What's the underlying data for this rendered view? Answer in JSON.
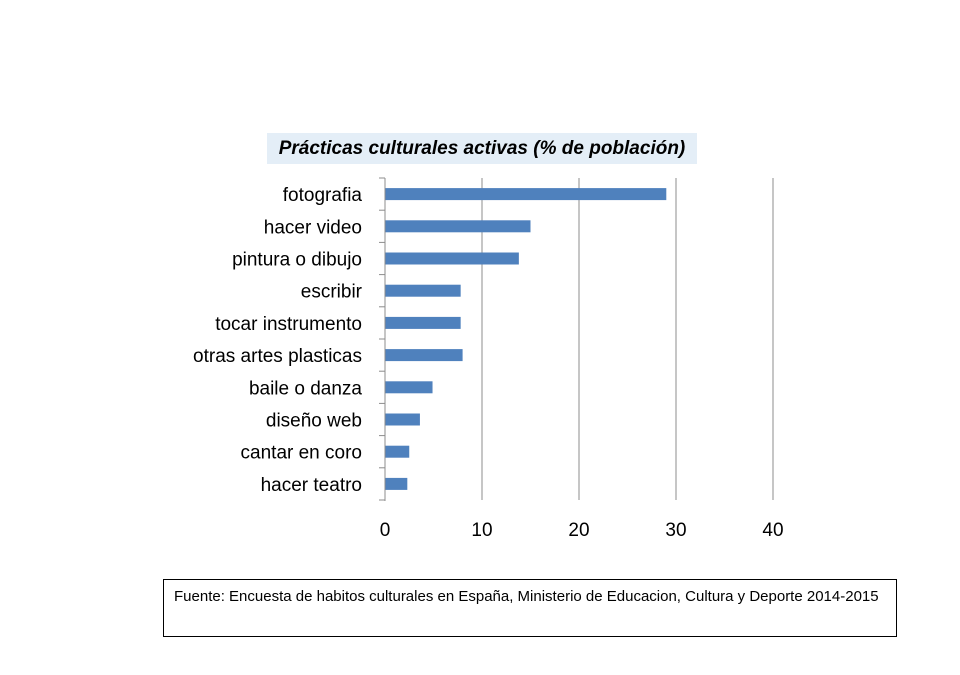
{
  "chart_data": {
    "type": "bar",
    "orientation": "horizontal",
    "title": "Prácticas culturales activas (% de población)",
    "categories": [
      "fotografia",
      "hacer video",
      "pintura o dibujo",
      "escribir",
      "tocar instrumento",
      "otras artes plasticas",
      "baile o danza",
      "diseño web",
      "cantar en coro",
      "hacer teatro"
    ],
    "values": [
      29,
      15,
      13.8,
      7.8,
      7.8,
      8,
      4.9,
      3.6,
      2.5,
      2.3
    ],
    "xlim": [
      0,
      40
    ],
    "xticks": [
      0,
      10,
      20,
      30,
      40
    ],
    "grid": "vertical",
    "legend": "none",
    "bar_color": "#4f81bd",
    "grid_color": "#8c8c8c"
  },
  "source": {
    "text": "Fuente: Encuesta de habitos culturales en España, Ministerio de Educacion, Cultura y Deporte 2014-2015"
  }
}
